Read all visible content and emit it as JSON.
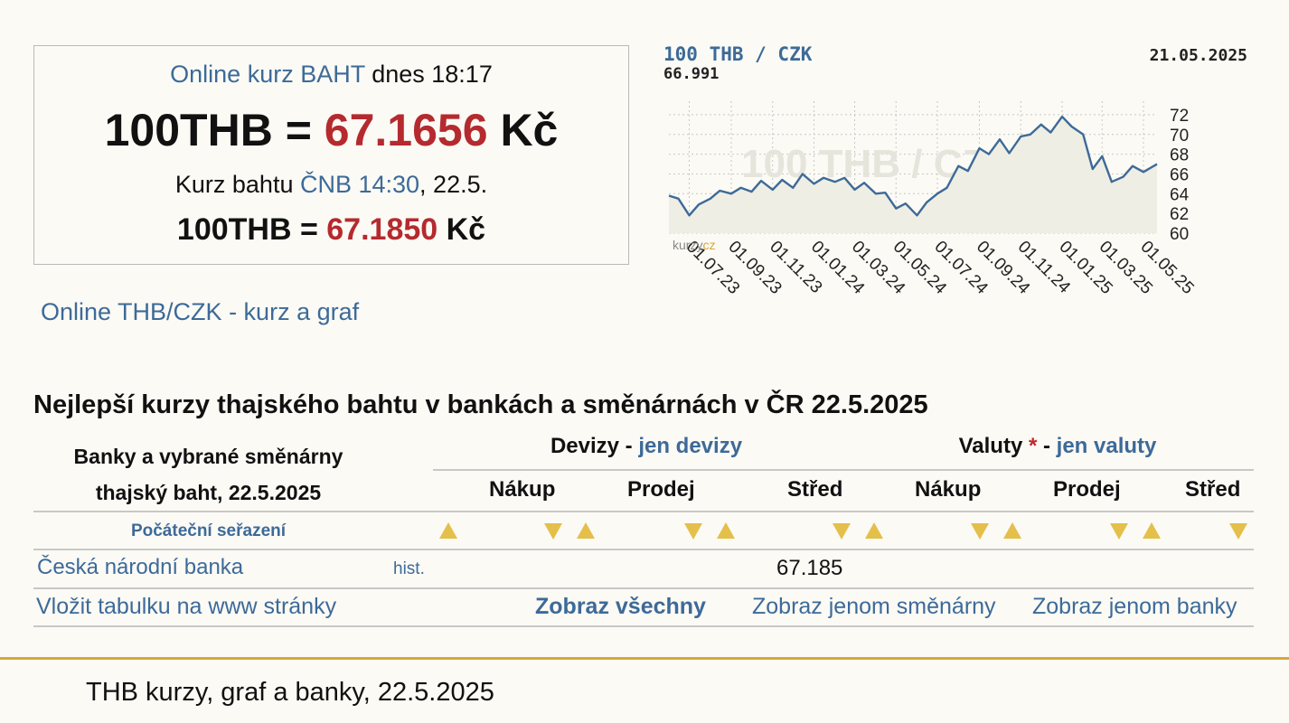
{
  "rate_box": {
    "online_label": "Online kurz BAHT",
    "online_time": " dnes 18:17",
    "online_pair": "100THB = ",
    "online_value": "67.1656",
    "online_unit": " Kč",
    "cnb_prefix": "Kurz bahtu ",
    "cnb_label": "ČNB 14:30",
    "cnb_date": ", 22.5.",
    "cnb_pair": "100THB = ",
    "cnb_value": "67.1850",
    "cnb_unit": " Kč"
  },
  "online_link": "Online THB/CZK - kurz a graf",
  "chart": {
    "title": "100 THB / CZK",
    "last_value": "66.991",
    "date": "21.05.2025",
    "watermark": "100 THB / CZK",
    "brand_a": "kurzy",
    "brand_b": "cz",
    "colors": {
      "line": "#3d6a98",
      "title": "#3d6a98",
      "fill": "#efeee4",
      "grid": "#c8c8c8"
    }
  },
  "chart_data": {
    "type": "area",
    "title": "100 THB / CZK",
    "ylim": [
      60,
      73
    ],
    "yticks": [
      "72",
      "70",
      "68",
      "66",
      "64",
      "62",
      "60"
    ],
    "xticks": [
      "01.07.23",
      "01.09.23",
      "01.11.23",
      "01.01.24",
      "01.03.24",
      "01.05.24",
      "01.07.24",
      "01.09.24",
      "01.11.24",
      "01.01.25",
      "01.03.25",
      "01.05.25"
    ],
    "x": [
      "01.06.23",
      "15.06.23",
      "01.07.23",
      "15.07.23",
      "01.08.23",
      "15.08.23",
      "01.09.23",
      "15.09.23",
      "01.10.23",
      "15.10.23",
      "01.11.23",
      "15.11.23",
      "01.12.23",
      "15.12.23",
      "01.01.24",
      "15.01.24",
      "01.02.24",
      "15.02.24",
      "01.03.24",
      "15.03.24",
      "01.04.24",
      "15.04.24",
      "01.05.24",
      "15.05.24",
      "01.06.24",
      "15.06.24",
      "01.07.24",
      "15.07.24",
      "01.08.24",
      "15.08.24",
      "01.09.24",
      "15.09.24",
      "01.10.24",
      "15.10.24",
      "01.11.24",
      "15.11.24",
      "01.12.24",
      "15.12.24",
      "01.01.25",
      "15.01.25",
      "01.02.25",
      "15.02.25",
      "01.03.25",
      "15.03.25",
      "01.04.25",
      "15.04.25",
      "01.05.25",
      "21.05.25"
    ],
    "values": [
      63.8,
      63.5,
      61.8,
      62.9,
      63.5,
      64.3,
      64.0,
      64.6,
      64.2,
      65.3,
      64.4,
      65.4,
      64.6,
      66.0,
      65.0,
      65.6,
      65.2,
      65.6,
      64.4,
      65.1,
      64.0,
      64.1,
      62.5,
      63.0,
      61.8,
      63.1,
      64.0,
      64.6,
      66.8,
      66.3,
      68.6,
      68.0,
      69.5,
      68.1,
      69.8,
      70.0,
      71.0,
      70.2,
      71.8,
      70.8,
      70.0,
      66.5,
      67.8,
      65.2,
      65.7,
      66.8,
      66.2,
      66.99
    ],
    "series": [
      {
        "name": "100 THB / CZK"
      }
    ],
    "grid": true
  },
  "section_title": "Nejlepší kurzy thajského bahtu v bankách a směnárnách v ČR 22.5.2025",
  "table": {
    "hdr_banks_1": "Banky a vybrané směnárny",
    "hdr_banks_2": "thajský baht, 22.5.2025",
    "devizy": "Devizy",
    "devizy_sep": " - ",
    "devizy_link": "jen devizy",
    "valuty": "Valuty",
    "valuty_star": " *",
    "valuty_sep": " - ",
    "valuty_link": "jen valuty",
    "col_nakup": "Nákup",
    "col_prodej": "Prodej",
    "col_stred": "Střed",
    "sort_label": "Počáteční seřazení",
    "rows": [
      {
        "name": "Česká národní banka",
        "hist": "hist.",
        "devizy_stred": "67.185"
      }
    ],
    "footer": {
      "embed": "Vložit tabulku na www stránky",
      "show_all": "Zobraz všechny",
      "show_exchanges": "Zobraz jenom směnárny",
      "show_banks": "Zobraz jenom banky"
    }
  },
  "footer_text": "THB kurzy, graf a banky, 22.5.2025"
}
